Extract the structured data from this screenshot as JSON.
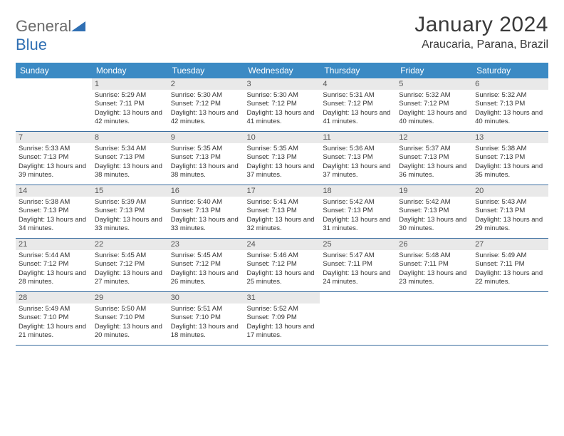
{
  "logo": {
    "text1": "General",
    "text2": "Blue"
  },
  "title": "January 2024",
  "location": "Araucaria, Parana, Brazil",
  "colors": {
    "header_bg": "#3b8ac4",
    "header_text": "#ffffff",
    "daynum_bg": "#e9e9e9",
    "daynum_text": "#555555",
    "border": "#3b6ea0",
    "body_text": "#333333",
    "logo_gray": "#6b6b6b",
    "logo_blue": "#2f6fb3"
  },
  "day_names": [
    "Sunday",
    "Monday",
    "Tuesday",
    "Wednesday",
    "Thursday",
    "Friday",
    "Saturday"
  ],
  "weeks": [
    [
      {
        "n": "",
        "sr": "",
        "ss": "",
        "dl": ""
      },
      {
        "n": "1",
        "sr": "Sunrise: 5:29 AM",
        "ss": "Sunset: 7:11 PM",
        "dl": "Daylight: 13 hours and 42 minutes."
      },
      {
        "n": "2",
        "sr": "Sunrise: 5:30 AM",
        "ss": "Sunset: 7:12 PM",
        "dl": "Daylight: 13 hours and 42 minutes."
      },
      {
        "n": "3",
        "sr": "Sunrise: 5:30 AM",
        "ss": "Sunset: 7:12 PM",
        "dl": "Daylight: 13 hours and 41 minutes."
      },
      {
        "n": "4",
        "sr": "Sunrise: 5:31 AM",
        "ss": "Sunset: 7:12 PM",
        "dl": "Daylight: 13 hours and 41 minutes."
      },
      {
        "n": "5",
        "sr": "Sunrise: 5:32 AM",
        "ss": "Sunset: 7:12 PM",
        "dl": "Daylight: 13 hours and 40 minutes."
      },
      {
        "n": "6",
        "sr": "Sunrise: 5:32 AM",
        "ss": "Sunset: 7:13 PM",
        "dl": "Daylight: 13 hours and 40 minutes."
      }
    ],
    [
      {
        "n": "7",
        "sr": "Sunrise: 5:33 AM",
        "ss": "Sunset: 7:13 PM",
        "dl": "Daylight: 13 hours and 39 minutes."
      },
      {
        "n": "8",
        "sr": "Sunrise: 5:34 AM",
        "ss": "Sunset: 7:13 PM",
        "dl": "Daylight: 13 hours and 38 minutes."
      },
      {
        "n": "9",
        "sr": "Sunrise: 5:35 AM",
        "ss": "Sunset: 7:13 PM",
        "dl": "Daylight: 13 hours and 38 minutes."
      },
      {
        "n": "10",
        "sr": "Sunrise: 5:35 AM",
        "ss": "Sunset: 7:13 PM",
        "dl": "Daylight: 13 hours and 37 minutes."
      },
      {
        "n": "11",
        "sr": "Sunrise: 5:36 AM",
        "ss": "Sunset: 7:13 PM",
        "dl": "Daylight: 13 hours and 37 minutes."
      },
      {
        "n": "12",
        "sr": "Sunrise: 5:37 AM",
        "ss": "Sunset: 7:13 PM",
        "dl": "Daylight: 13 hours and 36 minutes."
      },
      {
        "n": "13",
        "sr": "Sunrise: 5:38 AM",
        "ss": "Sunset: 7:13 PM",
        "dl": "Daylight: 13 hours and 35 minutes."
      }
    ],
    [
      {
        "n": "14",
        "sr": "Sunrise: 5:38 AM",
        "ss": "Sunset: 7:13 PM",
        "dl": "Daylight: 13 hours and 34 minutes."
      },
      {
        "n": "15",
        "sr": "Sunrise: 5:39 AM",
        "ss": "Sunset: 7:13 PM",
        "dl": "Daylight: 13 hours and 33 minutes."
      },
      {
        "n": "16",
        "sr": "Sunrise: 5:40 AM",
        "ss": "Sunset: 7:13 PM",
        "dl": "Daylight: 13 hours and 33 minutes."
      },
      {
        "n": "17",
        "sr": "Sunrise: 5:41 AM",
        "ss": "Sunset: 7:13 PM",
        "dl": "Daylight: 13 hours and 32 minutes."
      },
      {
        "n": "18",
        "sr": "Sunrise: 5:42 AM",
        "ss": "Sunset: 7:13 PM",
        "dl": "Daylight: 13 hours and 31 minutes."
      },
      {
        "n": "19",
        "sr": "Sunrise: 5:42 AM",
        "ss": "Sunset: 7:13 PM",
        "dl": "Daylight: 13 hours and 30 minutes."
      },
      {
        "n": "20",
        "sr": "Sunrise: 5:43 AM",
        "ss": "Sunset: 7:13 PM",
        "dl": "Daylight: 13 hours and 29 minutes."
      }
    ],
    [
      {
        "n": "21",
        "sr": "Sunrise: 5:44 AM",
        "ss": "Sunset: 7:12 PM",
        "dl": "Daylight: 13 hours and 28 minutes."
      },
      {
        "n": "22",
        "sr": "Sunrise: 5:45 AM",
        "ss": "Sunset: 7:12 PM",
        "dl": "Daylight: 13 hours and 27 minutes."
      },
      {
        "n": "23",
        "sr": "Sunrise: 5:45 AM",
        "ss": "Sunset: 7:12 PM",
        "dl": "Daylight: 13 hours and 26 minutes."
      },
      {
        "n": "24",
        "sr": "Sunrise: 5:46 AM",
        "ss": "Sunset: 7:12 PM",
        "dl": "Daylight: 13 hours and 25 minutes."
      },
      {
        "n": "25",
        "sr": "Sunrise: 5:47 AM",
        "ss": "Sunset: 7:11 PM",
        "dl": "Daylight: 13 hours and 24 minutes."
      },
      {
        "n": "26",
        "sr": "Sunrise: 5:48 AM",
        "ss": "Sunset: 7:11 PM",
        "dl": "Daylight: 13 hours and 23 minutes."
      },
      {
        "n": "27",
        "sr": "Sunrise: 5:49 AM",
        "ss": "Sunset: 7:11 PM",
        "dl": "Daylight: 13 hours and 22 minutes."
      }
    ],
    [
      {
        "n": "28",
        "sr": "Sunrise: 5:49 AM",
        "ss": "Sunset: 7:10 PM",
        "dl": "Daylight: 13 hours and 21 minutes."
      },
      {
        "n": "29",
        "sr": "Sunrise: 5:50 AM",
        "ss": "Sunset: 7:10 PM",
        "dl": "Daylight: 13 hours and 20 minutes."
      },
      {
        "n": "30",
        "sr": "Sunrise: 5:51 AM",
        "ss": "Sunset: 7:10 PM",
        "dl": "Daylight: 13 hours and 18 minutes."
      },
      {
        "n": "31",
        "sr": "Sunrise: 5:52 AM",
        "ss": "Sunset: 7:09 PM",
        "dl": "Daylight: 13 hours and 17 minutes."
      },
      {
        "n": "",
        "sr": "",
        "ss": "",
        "dl": ""
      },
      {
        "n": "",
        "sr": "",
        "ss": "",
        "dl": ""
      },
      {
        "n": "",
        "sr": "",
        "ss": "",
        "dl": ""
      }
    ]
  ]
}
